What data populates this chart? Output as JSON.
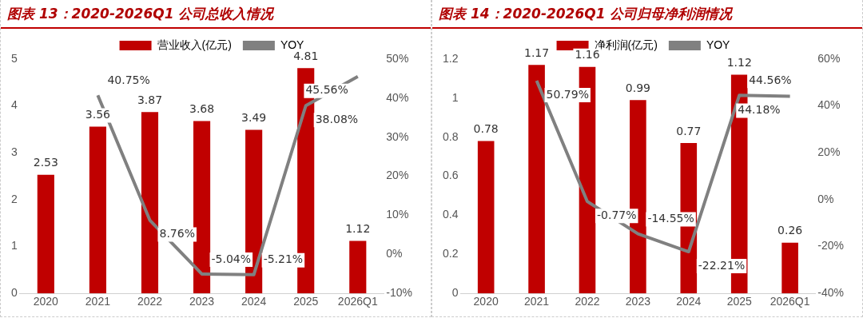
{
  "chart_data": [
    {
      "type": "bar",
      "title": "图表 13：2020-2026Q1 公司总收入情况",
      "categories": [
        "2020",
        "2021",
        "2022",
        "2023",
        "2024",
        "2025",
        "2026Q1"
      ],
      "series": [
        {
          "name": "营业收入(亿元)",
          "color": "#c00000",
          "values": [
            2.53,
            3.56,
            3.87,
            3.68,
            3.49,
            4.81,
            1.12
          ],
          "value_labels": [
            "2.53",
            "3.56",
            "3.87",
            "3.68",
            "3.49",
            "4.81",
            "1.12"
          ]
        },
        {
          "name": "YOY",
          "type": "line",
          "axis": "y2",
          "color": "#808080",
          "values": [
            null,
            40.75,
            8.76,
            -5.04,
            -5.21,
            38.08,
            45.56
          ],
          "value_labels": [
            null,
            "40.75%",
            "8.76%",
            "-5.04%",
            "-5.21%",
            "38.08%",
            "45.56%"
          ]
        }
      ],
      "ylim": [
        0,
        5
      ],
      "yticks": [
        0,
        1,
        2,
        3,
        4,
        5
      ],
      "y2lim": [
        -10,
        50
      ],
      "y2ticks": [
        {
          "value": -10,
          "label": "-10%"
        },
        {
          "value": 0,
          "label": "0%"
        },
        {
          "value": 10,
          "label": "10%"
        },
        {
          "value": 20,
          "label": "20%"
        },
        {
          "value": 30,
          "label": "30%"
        },
        {
          "value": 40,
          "label": "40%"
        },
        {
          "value": 50,
          "label": "50%"
        }
      ],
      "legend": "top",
      "marker": "none",
      "line_style": "solid",
      "grid": false
    },
    {
      "type": "bar",
      "title": "图表 14：2020-2026Q1 公司归母净利润情况",
      "categories": [
        "2020",
        "2021",
        "2022",
        "2023",
        "2024",
        "2025",
        "2026Q1"
      ],
      "series": [
        {
          "name": "净利润(亿元)",
          "color": "#c00000",
          "values": [
            0.78,
            1.17,
            1.16,
            0.99,
            0.77,
            1.12,
            0.26
          ],
          "value_labels": [
            "0.78",
            "1.17",
            "1.16",
            "0.99",
            "0.77",
            "1.12",
            "0.26"
          ]
        },
        {
          "name": "YOY",
          "type": "line",
          "axis": "y2",
          "color": "#808080",
          "values": [
            null,
            50.79,
            -0.77,
            -14.55,
            -22.21,
            44.56,
            44.18
          ],
          "value_labels": [
            null,
            "50.79%",
            "-0.77%",
            "-14.55%",
            "-22.21%",
            "44.56%",
            "44.18%"
          ]
        }
      ],
      "ylim": [
        0,
        1.2
      ],
      "yticks": [
        0,
        0.2,
        0.4,
        0.6,
        0.8,
        1,
        1.2
      ],
      "y2lim": [
        -40,
        60
      ],
      "y2ticks": [
        {
          "value": -40,
          "label": "-40%"
        },
        {
          "value": -20,
          "label": "-20%"
        },
        {
          "value": 0,
          "label": "0%"
        },
        {
          "value": 20,
          "label": "20%"
        },
        {
          "value": 40,
          "label": "40%"
        },
        {
          "value": 60,
          "label": "60%"
        }
      ],
      "legend": "top",
      "marker": "none",
      "line_style": "solid",
      "grid": false
    }
  ]
}
